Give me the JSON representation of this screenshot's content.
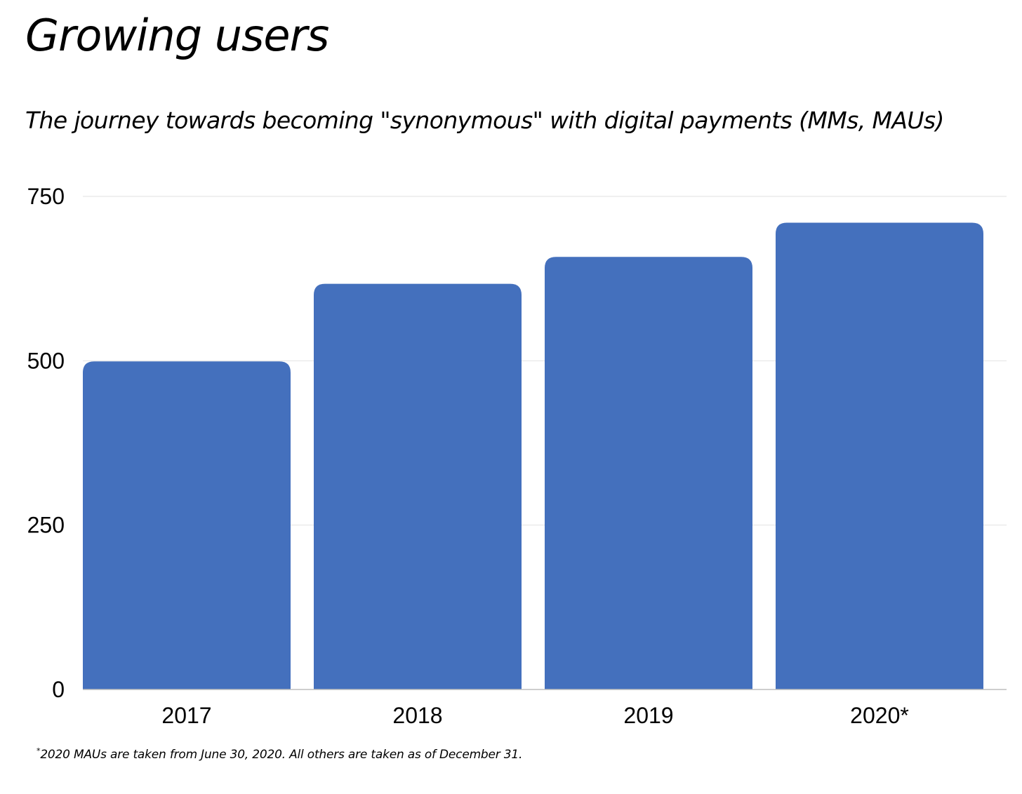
{
  "header": {
    "title": "Growing users",
    "subtitle": "The journey towards becoming \"synonymous\" with digital payments (MMs, MAUs)"
  },
  "footnote": {
    "marker": "*",
    "text": "2020 MAUs are taken from June 30, 2020. All others are taken as of December 31."
  },
  "colors": {
    "bar": "#4470BD",
    "grid": "#E2E2E2",
    "axis": "#BDBDBD",
    "text": "#000000"
  },
  "chart_data": {
    "type": "bar",
    "title": "Growing users",
    "subtitle": "The journey towards becoming \"synonymous\" with digital payments (MMs, MAUs)",
    "categories": [
      "2017",
      "2018",
      "2019",
      "2020*"
    ],
    "values": [
      499,
      617,
      658,
      710
    ],
    "xlabel": "",
    "ylabel": "",
    "ylim": [
      0,
      750
    ],
    "yticks": [
      0,
      250,
      500,
      750
    ],
    "grid": true,
    "legend": "none"
  }
}
